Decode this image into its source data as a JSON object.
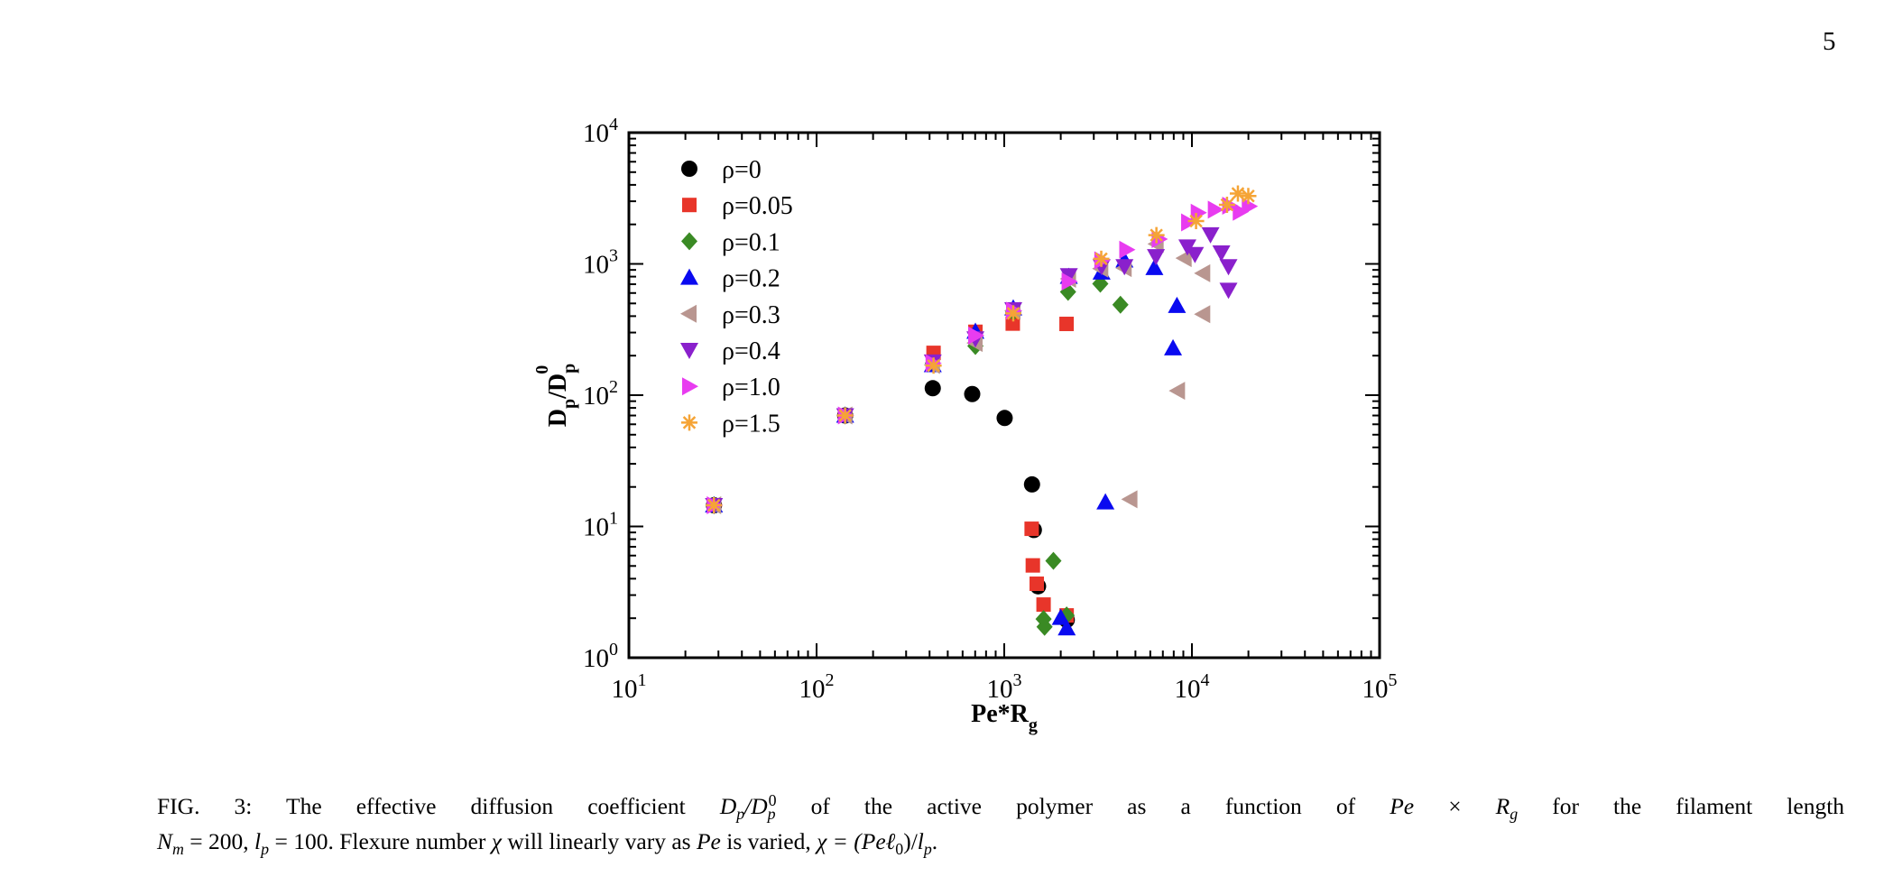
{
  "page_number": "5",
  "caption": {
    "fig_label": "FIG. 3:",
    "line1_a": "The effective diffusion coefficient",
    "math1_D": "D",
    "math1_sub": "p",
    "math1_slash": "/D",
    "math1_sub2": "p",
    "math1_sup2": "0",
    "line1_b": "of the active polymer as a function of",
    "math2_Pe": "Pe",
    "math2_times": "×",
    "math2_R": "R",
    "math2_sub": "g",
    "line1_c": "for the filament length",
    "math3_N": "N",
    "math3_sub": "m",
    "math3_eq": " = 200, ",
    "math4_l": "l",
    "math4_sub": "p",
    "math4_eq": " = 100.",
    "line2_a": "Flexure number",
    "chi": "χ",
    "line2_b": "will linearly vary as",
    "math5_Pe": "Pe",
    "line2_c": "is varied,",
    "math6_a": "χ = (",
    "math6_b": "Peℓ",
    "math6_sub0": "0",
    "math6_c": ")/",
    "math6_l": "l",
    "math6_sub": "p",
    "math6_end": "."
  },
  "chart_data": {
    "type": "scatter",
    "title": "",
    "xlabel": "Pe*R",
    "xlabel_sub": "g",
    "ylabel": "D",
    "ylabel_sub": "p",
    "ylabel_mid": "/D",
    "ylabel_sub2": "p",
    "ylabel_sup2": "0",
    "xscale": "log",
    "yscale": "log",
    "xlim": [
      10,
      100000
    ],
    "ylim": [
      1,
      10000
    ],
    "grid": false,
    "legend_placement": "top-left",
    "x_ticks": [
      {
        "base": "10",
        "exp": "1"
      },
      {
        "base": "10",
        "exp": "2"
      },
      {
        "base": "10",
        "exp": "3"
      },
      {
        "base": "10",
        "exp": "4"
      },
      {
        "base": "10",
        "exp": "5"
      }
    ],
    "y_ticks": [
      {
        "base": "10",
        "exp": "0"
      },
      {
        "base": "10",
        "exp": "1"
      },
      {
        "base": "10",
        "exp": "2"
      },
      {
        "base": "10",
        "exp": "3"
      },
      {
        "base": "10",
        "exp": "4"
      }
    ],
    "series": [
      {
        "name": "ρ=0",
        "color": "#000000",
        "marker": "circle",
        "x": [
          28.4,
          142,
          416,
          675,
          1005,
          1406,
          1438,
          1514,
          2153
        ],
        "y": [
          14.5,
          70,
          113,
          102,
          67,
          20.9,
          9.4,
          3.5,
          1.94
        ]
      },
      {
        "name": "ρ=0.05",
        "color": "#e8352a",
        "marker": "square",
        "x": [
          28.4,
          142,
          420,
          702,
          1110,
          2148,
          1400,
          1420,
          1490,
          1620,
          2150
        ],
        "y": [
          14.5,
          70,
          210,
          304,
          351,
          349,
          9.6,
          5.05,
          3.66,
          2.54,
          2.1
        ]
      },
      {
        "name": "ρ=0.1",
        "color": "#3a8a24",
        "marker": "diamond",
        "x": [
          28.4,
          142,
          416,
          702,
          1117,
          2188,
          3250,
          4160,
          1828,
          1620,
          1640,
          2150
        ],
        "y": [
          14.5,
          70,
          175,
          237,
          430,
          612,
          706,
          489,
          5.47,
          1.97,
          1.72,
          2.1
        ]
      },
      {
        "name": "ρ=0.2",
        "color": "#0a0af0",
        "marker": "triangle-up",
        "x": [
          28.4,
          142,
          416,
          702,
          1117,
          2208,
          3300,
          4370,
          6310,
          8320,
          7930,
          3460,
          2000,
          2153
        ],
        "y": [
          14.5,
          70,
          170,
          305,
          460,
          800,
          862,
          1066,
          933,
          480,
          228,
          15.3,
          2.02,
          1.68
        ]
      },
      {
        "name": "ρ=0.3",
        "color": "#b99690",
        "marker": "triangle-left",
        "x": [
          28.4,
          142,
          416,
          702,
          1117,
          2208,
          3280,
          4370,
          6470,
          9120,
          11460,
          11460,
          8410,
          4690
        ],
        "y": [
          14.5,
          70,
          170,
          250,
          440,
          770,
          920,
          930,
          1420,
          1106,
          848,
          414,
          108,
          16.1
        ]
      },
      {
        "name": "ρ=0.4",
        "color": "#8a20cc",
        "marker": "triangle-down",
        "x": [
          28.4,
          142,
          416,
          702,
          1117,
          2210,
          3300,
          4370,
          6430,
          9460,
          10380,
          12560,
          14350,
          15660,
          15660
        ],
        "y": [
          14.5,
          70,
          180,
          270,
          450,
          817,
          958,
          958,
          1142,
          1354,
          1185,
          1676,
          1218,
          958,
          633
        ]
      },
      {
        "name": "ρ=1.0",
        "color": "#e83cf0",
        "marker": "triangle-right",
        "x": [
          28.4,
          142,
          416,
          702,
          1117,
          2208,
          3300,
          4480,
          6670,
          9570,
          10770,
          13280,
          15850,
          18030,
          20140
        ],
        "y": [
          14.5,
          70,
          175,
          285,
          440,
          735,
          1066,
          1284,
          1546,
          2070,
          2455,
          2589,
          2775,
          2495,
          2750
        ]
      },
      {
        "name": "ρ=1.5",
        "color": "#f5a436",
        "marker": "asterisk",
        "x": [
          28.4,
          142,
          420,
          1117,
          3288,
          6469,
          10520,
          15380,
          17580,
          19970
        ],
        "y": [
          14.5,
          70,
          168,
          420,
          1094,
          1656,
          2120,
          2820,
          3435,
          3290
        ]
      }
    ]
  }
}
